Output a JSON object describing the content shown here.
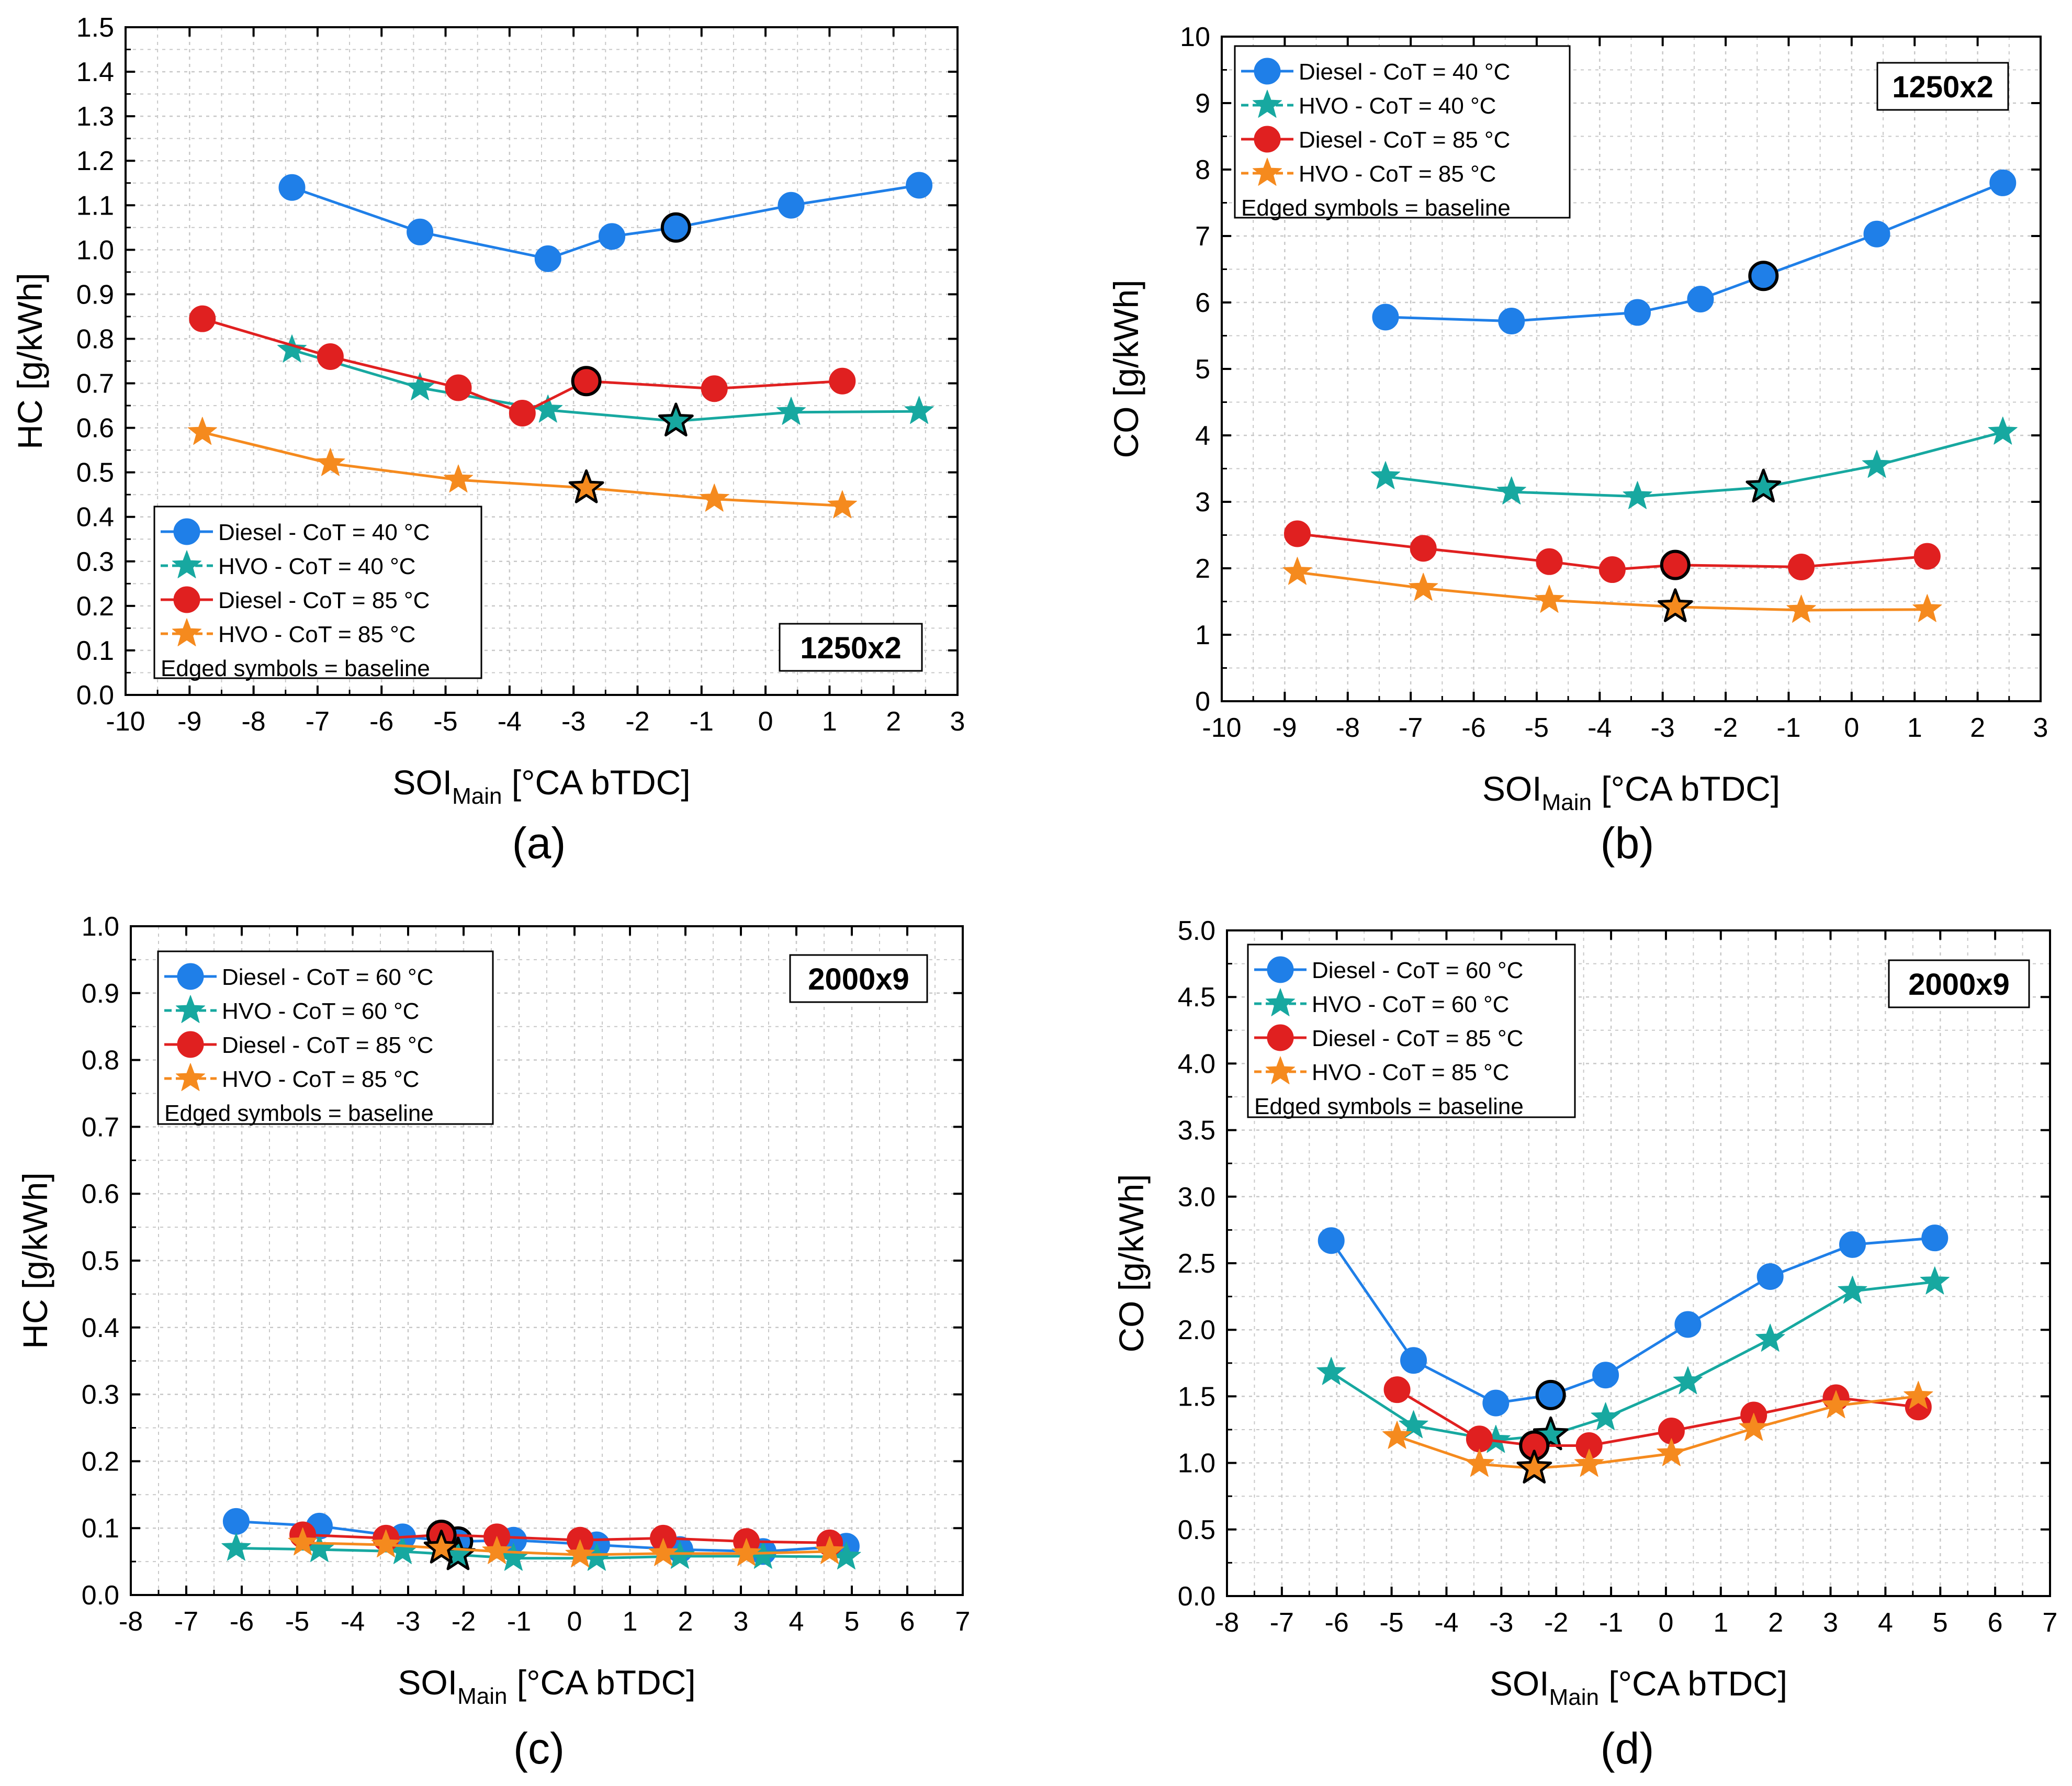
{
  "colors": {
    "diesel_40": "#1f7fe8",
    "hvo_40": "#17a8a0",
    "diesel_85": "#e02020",
    "hvo_85": "#f58a1e",
    "grid": "#c8c8c8",
    "baseline_edge": "#000000"
  },
  "chart_data": [
    {
      "type": "line",
      "panel_label": "(a)",
      "tag": "1250x2",
      "xlabel": "SOI",
      "xlabel_sub": "Main",
      "xlabel_rest": " [°CA bTDC]",
      "ylabel": "HC [g/kWh]",
      "xlim": [
        -10,
        3
      ],
      "ylim": [
        0,
        1.5
      ],
      "xticks": [
        "-10",
        "-9",
        "-8",
        "-7",
        "-6",
        "-5",
        "-4",
        "-3",
        "-2",
        "-1",
        "0",
        "1",
        "2",
        "3"
      ],
      "yticks": [
        "0.0",
        "0.1",
        "0.2",
        "0.3",
        "0.4",
        "0.5",
        "0.6",
        "0.7",
        "0.8",
        "0.9",
        "1.0",
        "1.1",
        "1.2",
        "1.3",
        "1.4",
        "1.5"
      ],
      "legend_location": "lower-middle",
      "legend_note": "Edged symbols = baseline",
      "series": [
        {
          "name": "Diesel - CoT = 40 °C",
          "marker": "circle",
          "color_key": "diesel_40",
          "x": [
            -7.4,
            -5.4,
            -3.4,
            -2.4,
            -1.4,
            0.4,
            2.4
          ],
          "y": [
            1.14,
            1.04,
            0.98,
            1.03,
            1.05,
            1.1,
            1.145
          ],
          "baseline_index": 4
        },
        {
          "name": "HVO - CoT = 40 °C",
          "marker": "star",
          "color_key": "hvo_40",
          "x": [
            -7.4,
            -5.4,
            -3.4,
            -1.4,
            0.4,
            2.4
          ],
          "y": [
            0.775,
            0.69,
            0.64,
            0.615,
            0.635,
            0.637
          ],
          "baseline_index": 3
        },
        {
          "name": "Diesel - CoT = 85 °C",
          "marker": "circle",
          "color_key": "diesel_85",
          "x": [
            -8.8,
            -6.8,
            -4.8,
            -3.8,
            -2.8,
            -0.8,
            1.2
          ],
          "y": [
            0.845,
            0.76,
            0.69,
            0.633,
            0.705,
            0.688,
            0.705
          ],
          "baseline_index": 4
        },
        {
          "name": "HVO - CoT = 85 °C",
          "marker": "star",
          "color_key": "hvo_85",
          "x": [
            -8.8,
            -6.8,
            -4.8,
            -2.8,
            -0.8,
            1.2
          ],
          "y": [
            0.59,
            0.52,
            0.483,
            0.465,
            0.44,
            0.425
          ],
          "baseline_index": 3
        }
      ]
    },
    {
      "type": "line",
      "panel_label": "(b)",
      "tag": "1250x2",
      "xlabel": "SOI",
      "xlabel_sub": "Main",
      "xlabel_rest": " [°CA bTDC]",
      "ylabel": "CO [g/kWh]",
      "xlim": [
        -10,
        3
      ],
      "ylim": [
        0,
        10
      ],
      "xticks": [
        "-10",
        "-9",
        "-8",
        "-7",
        "-6",
        "-5",
        "-4",
        "-3",
        "-2",
        "-1",
        "0",
        "1",
        "2",
        "3"
      ],
      "yticks": [
        "0",
        "1",
        "2",
        "3",
        "4",
        "5",
        "6",
        "7",
        "8",
        "9",
        "10"
      ],
      "legend_location": "top-left",
      "legend_note": "Edged symbols = baseline",
      "series": [
        {
          "name": "Diesel - CoT = 40 °C",
          "marker": "circle",
          "color_key": "diesel_40",
          "x": [
            -7.4,
            -5.4,
            -3.4,
            -2.4,
            -1.4,
            0.4,
            2.4
          ],
          "y": [
            5.78,
            5.72,
            5.85,
            6.05,
            6.4,
            7.03,
            7.8
          ],
          "baseline_index": 4
        },
        {
          "name": "HVO - CoT = 40 °C",
          "marker": "star",
          "color_key": "hvo_40",
          "x": [
            -7.4,
            -5.4,
            -3.4,
            -1.4,
            0.4,
            2.4
          ],
          "y": [
            3.38,
            3.15,
            3.08,
            3.22,
            3.55,
            4.05
          ],
          "baseline_index": 3
        },
        {
          "name": "Diesel - CoT = 85 °C",
          "marker": "circle",
          "color_key": "diesel_85",
          "x": [
            -8.8,
            -6.8,
            -4.8,
            -3.8,
            -2.8,
            -0.8,
            1.2
          ],
          "y": [
            2.52,
            2.3,
            2.1,
            1.98,
            2.05,
            2.02,
            2.18
          ],
          "baseline_index": 4
        },
        {
          "name": "HVO - CoT = 85 °C",
          "marker": "star",
          "color_key": "hvo_85",
          "x": [
            -8.8,
            -6.8,
            -4.8,
            -2.8,
            -0.8,
            1.2
          ],
          "y": [
            1.94,
            1.7,
            1.52,
            1.42,
            1.37,
            1.38
          ],
          "baseline_index": 3
        }
      ]
    },
    {
      "type": "line",
      "panel_label": "(c)",
      "tag": "2000x9",
      "xlabel": "SOI",
      "xlabel_sub": "Main",
      "xlabel_rest": " [°CA bTDC]",
      "ylabel": "HC [g/kWh]",
      "xlim": [
        -8,
        7
      ],
      "ylim": [
        0,
        1.0
      ],
      "xticks": [
        "-8",
        "-7",
        "-6",
        "-5",
        "-4",
        "-3",
        "-2",
        "-1",
        "0",
        "1",
        "2",
        "3",
        "4",
        "5",
        "6",
        "7"
      ],
      "yticks": [
        "0.0",
        "0.1",
        "0.2",
        "0.3",
        "0.4",
        "0.5",
        "0.6",
        "0.7",
        "0.8",
        "0.9",
        "1.0"
      ],
      "legend_location": "top-left",
      "legend_note": "Edged symbols = baseline",
      "series": [
        {
          "name": "Diesel - CoT = 60 °C",
          "marker": "circle",
          "color_key": "diesel_40",
          "x": [
            -6.1,
            -4.6,
            -3.1,
            -2.1,
            -1.1,
            0.4,
            1.9,
            3.4,
            4.9
          ],
          "y": [
            0.11,
            0.103,
            0.087,
            0.08,
            0.082,
            0.075,
            0.068,
            0.065,
            0.073
          ],
          "baseline_index": 3
        },
        {
          "name": "HVO - CoT = 60 °C",
          "marker": "star",
          "color_key": "hvo_40",
          "x": [
            -6.1,
            -4.6,
            -3.1,
            -2.1,
            -1.1,
            0.4,
            1.9,
            3.4,
            4.9
          ],
          "y": [
            0.07,
            0.068,
            0.065,
            0.06,
            0.055,
            0.055,
            0.058,
            0.058,
            0.057
          ],
          "baseline_index": 3
        },
        {
          "name": "Diesel - CoT = 85 °C",
          "marker": "circle",
          "color_key": "diesel_85",
          "x": [
            -4.9,
            -3.4,
            -2.4,
            -1.4,
            0.1,
            1.6,
            3.1,
            4.6
          ],
          "y": [
            0.09,
            0.085,
            0.09,
            0.087,
            0.082,
            0.085,
            0.08,
            0.078
          ],
          "baseline_index": 2
        },
        {
          "name": "HVO - CoT = 85 °C",
          "marker": "star",
          "color_key": "hvo_85",
          "x": [
            -4.9,
            -3.4,
            -2.4,
            -1.4,
            0.1,
            1.6,
            3.1,
            4.6
          ],
          "y": [
            0.078,
            0.075,
            0.07,
            0.065,
            0.06,
            0.062,
            0.062,
            0.065
          ],
          "baseline_index": 2
        }
      ]
    },
    {
      "type": "line",
      "panel_label": "(d)",
      "tag": "2000x9",
      "xlabel": "SOI",
      "xlabel_sub": "Main",
      "xlabel_rest": " [°CA bTDC]",
      "ylabel": "CO [g/kWh]",
      "xlim": [
        -8,
        7
      ],
      "ylim": [
        0,
        5.0
      ],
      "xticks": [
        "-8",
        "-7",
        "-6",
        "-5",
        "-4",
        "-3",
        "-2",
        "-1",
        "0",
        "1",
        "2",
        "3",
        "4",
        "5",
        "6",
        "7"
      ],
      "yticks": [
        "0.0",
        "0.5",
        "1.0",
        "1.5",
        "2.0",
        "2.5",
        "3.0",
        "3.5",
        "4.0",
        "4.5",
        "5.0"
      ],
      "legend_location": "top-left",
      "legend_note": "Edged symbols = baseline",
      "series": [
        {
          "name": "Diesel - CoT = 60 °C",
          "marker": "circle",
          "color_key": "diesel_40",
          "x": [
            -6.1,
            -4.6,
            -3.1,
            -2.1,
            -1.1,
            0.4,
            1.9,
            3.4,
            4.9
          ],
          "y": [
            2.67,
            1.77,
            1.45,
            1.51,
            1.66,
            2.04,
            2.4,
            2.64,
            2.69
          ],
          "baseline_index": 3
        },
        {
          "name": "HVO - CoT = 60 °C",
          "marker": "star",
          "color_key": "hvo_40",
          "x": [
            -6.1,
            -4.6,
            -3.1,
            -2.1,
            -1.1,
            0.4,
            1.9,
            3.4,
            4.9
          ],
          "y": [
            1.68,
            1.28,
            1.17,
            1.21,
            1.34,
            1.61,
            1.93,
            2.29,
            2.36
          ],
          "baseline_index": 3
        },
        {
          "name": "Diesel - CoT = 85 °C",
          "marker": "circle",
          "color_key": "diesel_85",
          "x": [
            -4.9,
            -3.4,
            -2.4,
            -1.4,
            0.1,
            1.6,
            3.1,
            4.6
          ],
          "y": [
            1.55,
            1.18,
            1.13,
            1.13,
            1.24,
            1.36,
            1.49,
            1.42
          ],
          "baseline_index": 2
        },
        {
          "name": "HVO - CoT = 85 °C",
          "marker": "star",
          "color_key": "hvo_85",
          "x": [
            -4.9,
            -3.4,
            -2.4,
            -1.4,
            0.1,
            1.6,
            3.1,
            4.6
          ],
          "y": [
            1.2,
            0.99,
            0.96,
            0.99,
            1.07,
            1.26,
            1.43,
            1.5
          ],
          "baseline_index": 2
        }
      ]
    }
  ]
}
